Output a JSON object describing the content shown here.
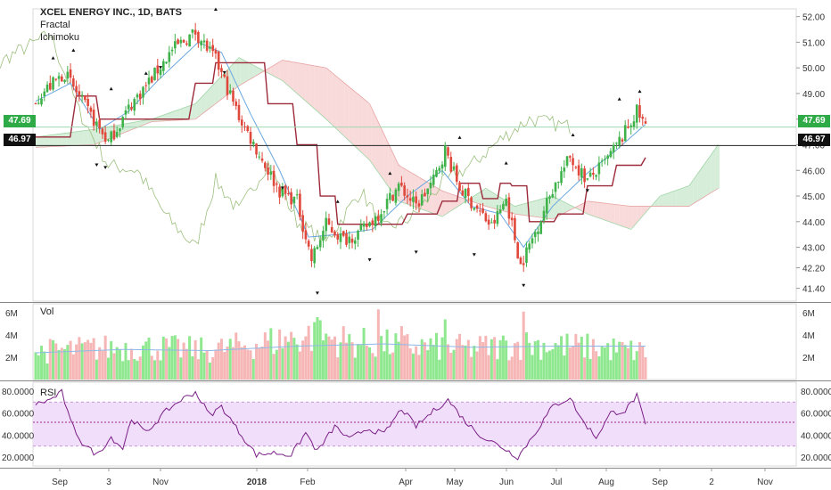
{
  "header": {
    "title": "XCEL ENERGY INC., 1D, BATS",
    "indicators": [
      "Fractal",
      "Ichimoku"
    ]
  },
  "price_labels": {
    "last_price": "47.69",
    "last_price_color": "#2eaa46",
    "reference_price": "46.97",
    "reference_price_color": "#111111"
  },
  "panes": {
    "volume_label": "Vol",
    "rsi_label": "RSI"
  },
  "colors": {
    "up": "#3fb24a",
    "down": "#e0483c",
    "vol_up": "#8fe88f",
    "vol_down": "#f7b6b6",
    "kijun": "#9c2a3a",
    "tenkan": "#6aa7e0",
    "chikou": "#9cbf7e",
    "cloud_bull": "#cfead2",
    "cloud_bear": "#f8d4d4",
    "rsi_line": "#7a1f86",
    "rsi_band": "#f1defa"
  },
  "chart_data": [
    {
      "type": "candlestick",
      "title": "XCEL ENERGY INC., 1D, BATS",
      "ylim": [
        40.9,
        52.3
      ],
      "y_ticks": [
        "52.00",
        "51.00",
        "50.00",
        "49.00",
        "48.00",
        "47.00",
        "46.00",
        "45.00",
        "44.00",
        "43.00",
        "42.20",
        "41.40"
      ],
      "x_ticks": [
        "Sep",
        "3",
        "Nov",
        "2018",
        "Feb",
        "Apr",
        "May",
        "Jun",
        "Jul",
        "Aug",
        "Sep",
        "2",
        "Nov"
      ],
      "last_price": 47.69,
      "reference_line": 46.97,
      "close_anchors": [
        {
          "bar": 0,
          "close": 48.8
        },
        {
          "bar": 10,
          "close": 49.8
        },
        {
          "bar": 18,
          "close": 48.3
        },
        {
          "bar": 25,
          "close": 47.1
        },
        {
          "bar": 33,
          "close": 48.6
        },
        {
          "bar": 40,
          "close": 49.6
        },
        {
          "bar": 47,
          "close": 50.7
        },
        {
          "bar": 55,
          "close": 51.4
        },
        {
          "bar": 62,
          "close": 50.3
        },
        {
          "bar": 70,
          "close": 48.1
        },
        {
          "bar": 78,
          "close": 46.4
        },
        {
          "bar": 84,
          "close": 45.2
        },
        {
          "bar": 90,
          "close": 44.8
        },
        {
          "bar": 95,
          "close": 42.5
        },
        {
          "bar": 100,
          "close": 43.9
        },
        {
          "bar": 106,
          "close": 43.3
        },
        {
          "bar": 112,
          "close": 43.6
        },
        {
          "bar": 118,
          "close": 44.3
        },
        {
          "bar": 125,
          "close": 45.4
        },
        {
          "bar": 131,
          "close": 44.6
        },
        {
          "bar": 137,
          "close": 45.6
        },
        {
          "bar": 141,
          "close": 46.8
        },
        {
          "bar": 146,
          "close": 45.3
        },
        {
          "bar": 152,
          "close": 44.5
        },
        {
          "bar": 157,
          "close": 43.8
        },
        {
          "bar": 162,
          "close": 44.9
        },
        {
          "bar": 167,
          "close": 42.3
        },
        {
          "bar": 172,
          "close": 43.6
        },
        {
          "bar": 178,
          "close": 45.3
        },
        {
          "bar": 184,
          "close": 46.5
        },
        {
          "bar": 190,
          "close": 45.6
        },
        {
          "bar": 196,
          "close": 46.3
        },
        {
          "bar": 202,
          "close": 47.3
        },
        {
          "bar": 207,
          "close": 48.3
        },
        {
          "bar": 210,
          "close": 47.7
        }
      ],
      "kijun": [
        {
          "bar": 0,
          "value": 47.3
        },
        {
          "bar": 14,
          "value": 48.9
        },
        {
          "bar": 22,
          "value": 48.0
        },
        {
          "bar": 40,
          "value": 48.0
        },
        {
          "bar": 55,
          "value": 49.4
        },
        {
          "bar": 62,
          "value": 50.2
        },
        {
          "bar": 72,
          "value": 50.2
        },
        {
          "bar": 80,
          "value": 48.6
        },
        {
          "bar": 90,
          "value": 47.0
        },
        {
          "bar": 98,
          "value": 45.0
        },
        {
          "bar": 104,
          "value": 43.9
        },
        {
          "bar": 116,
          "value": 43.9
        },
        {
          "bar": 128,
          "value": 44.3
        },
        {
          "bar": 140,
          "value": 44.8
        },
        {
          "bar": 146,
          "value": 45.5
        },
        {
          "bar": 154,
          "value": 44.9
        },
        {
          "bar": 160,
          "value": 45.5
        },
        {
          "bar": 164,
          "value": 45.4
        },
        {
          "bar": 170,
          "value": 44.0
        },
        {
          "bar": 180,
          "value": 44.3
        },
        {
          "bar": 190,
          "value": 45.4
        },
        {
          "bar": 200,
          "value": 46.2
        },
        {
          "bar": 210,
          "value": 46.5
        }
      ],
      "tenkan": [
        {
          "bar": 0,
          "value": 48.7
        },
        {
          "bar": 12,
          "value": 49.4
        },
        {
          "bar": 22,
          "value": 47.6
        },
        {
          "bar": 32,
          "value": 48.3
        },
        {
          "bar": 42,
          "value": 49.5
        },
        {
          "bar": 56,
          "value": 51.0
        },
        {
          "bar": 64,
          "value": 50.6
        },
        {
          "bar": 74,
          "value": 48.2
        },
        {
          "bar": 84,
          "value": 46.0
        },
        {
          "bar": 94,
          "value": 43.4
        },
        {
          "bar": 104,
          "value": 43.5
        },
        {
          "bar": 116,
          "value": 43.7
        },
        {
          "bar": 128,
          "value": 45.0
        },
        {
          "bar": 140,
          "value": 46.0
        },
        {
          "bar": 150,
          "value": 44.6
        },
        {
          "bar": 160,
          "value": 44.3
        },
        {
          "bar": 168,
          "value": 43.0
        },
        {
          "bar": 178,
          "value": 44.6
        },
        {
          "bar": 190,
          "value": 45.9
        },
        {
          "bar": 200,
          "value": 46.8
        },
        {
          "bar": 210,
          "value": 47.8
        }
      ],
      "chikou": [
        {
          "bar": -26,
          "value": 48.2
        },
        {
          "bar": -10,
          "value": 50.4
        },
        {
          "bar": 5,
          "value": 51.3
        },
        {
          "bar": 15,
          "value": 48.3
        },
        {
          "bar": 25,
          "value": 46.2
        },
        {
          "bar": 35,
          "value": 46.0
        },
        {
          "bar": 45,
          "value": 44.2
        },
        {
          "bar": 55,
          "value": 43.0
        },
        {
          "bar": 62,
          "value": 45.6
        },
        {
          "bar": 70,
          "value": 44.4
        },
        {
          "bar": 80,
          "value": 46.3
        },
        {
          "bar": 90,
          "value": 44.0
        },
        {
          "bar": 100,
          "value": 43.2
        },
        {
          "bar": 112,
          "value": 45.2
        },
        {
          "bar": 120,
          "value": 43.7
        },
        {
          "bar": 130,
          "value": 44.2
        },
        {
          "bar": 140,
          "value": 45.5
        },
        {
          "bar": 150,
          "value": 46.2
        },
        {
          "bar": 160,
          "value": 47.2
        },
        {
          "bar": 170,
          "value": 48.0
        },
        {
          "bar": 184,
          "value": 47.7
        }
      ],
      "cloud": [
        {
          "bar": 0,
          "a": 47.3,
          "b": 46.9
        },
        {
          "bar": 20,
          "a": 47.6,
          "b": 47.0
        },
        {
          "bar": 40,
          "a": 48.0,
          "b": 47.9
        },
        {
          "bar": 55,
          "a": 48.6,
          "b": 48.0
        },
        {
          "bar": 70,
          "a": 50.4,
          "b": 49.3
        },
        {
          "bar": 85,
          "a": 49.5,
          "b": 50.3
        },
        {
          "bar": 100,
          "a": 48.0,
          "b": 50.0
        },
        {
          "bar": 115,
          "a": 46.4,
          "b": 48.6
        },
        {
          "bar": 125,
          "a": 44.8,
          "b": 46.2
        },
        {
          "bar": 140,
          "a": 44.2,
          "b": 45.2
        },
        {
          "bar": 155,
          "a": 45.3,
          "b": 44.6
        },
        {
          "bar": 165,
          "a": 44.6,
          "b": 44.3
        },
        {
          "bar": 178,
          "a": 45.0,
          "b": 44.1
        },
        {
          "bar": 190,
          "a": 44.3,
          "b": 44.8
        },
        {
          "bar": 205,
          "a": 43.7,
          "b": 44.6
        },
        {
          "bar": 215,
          "a": 45.0,
          "b": 44.6
        },
        {
          "bar": 225,
          "a": 45.4,
          "b": 44.6
        },
        {
          "bar": 235,
          "a": 47.0,
          "b": 45.3
        }
      ],
      "fractals_up": [
        {
          "bar": 6,
          "value": 50.4
        },
        {
          "bar": 13,
          "value": 50.7
        },
        {
          "bar": 26,
          "value": 49.2
        },
        {
          "bar": 38,
          "value": 49.8
        },
        {
          "bar": 55,
          "value": 52.8
        },
        {
          "bar": 62,
          "value": 52.3
        },
        {
          "bar": 104,
          "value": 44.8
        },
        {
          "bar": 122,
          "value": 45.9
        },
        {
          "bar": 146,
          "value": 47.3
        },
        {
          "bar": 162,
          "value": 46.3
        },
        {
          "bar": 185,
          "value": 47.4
        },
        {
          "bar": 201,
          "value": 48.8
        },
        {
          "bar": 208,
          "value": 49.1
        }
      ],
      "fractals_down": [
        {
          "bar": 21,
          "value": 46.2
        },
        {
          "bar": 24,
          "value": 46.1
        },
        {
          "bar": 43,
          "value": 50.0
        },
        {
          "bar": 65,
          "value": 49.8
        },
        {
          "bar": 85,
          "value": 45.3
        },
        {
          "bar": 97,
          "value": 41.2
        },
        {
          "bar": 115,
          "value": 42.5
        },
        {
          "bar": 131,
          "value": 42.8
        },
        {
          "bar": 151,
          "value": 42.7
        },
        {
          "bar": 168,
          "value": 41.5
        },
        {
          "bar": 190,
          "value": 45.2
        }
      ]
    },
    {
      "type": "bar",
      "title": "Vol",
      "ylim": [
        0,
        6800000
      ],
      "y_ticks": [
        "6M",
        "4M",
        "2M"
      ],
      "volume_anchors": [
        {
          "bar": 0,
          "value": 2500000
        },
        {
          "bar": 20,
          "value": 2800000
        },
        {
          "bar": 40,
          "value": 2900000
        },
        {
          "bar": 60,
          "value": 2600000
        },
        {
          "bar": 78,
          "value": 3300000
        },
        {
          "bar": 96,
          "value": 4000000
        },
        {
          "bar": 110,
          "value": 3300000
        },
        {
          "bar": 130,
          "value": 3000000
        },
        {
          "bar": 150,
          "value": 2800000
        },
        {
          "bar": 170,
          "value": 3200000
        },
        {
          "bar": 190,
          "value": 2900000
        },
        {
          "bar": 210,
          "value": 2500000
        }
      ],
      "volume_spikes": [
        {
          "bar": 97,
          "value": 5600000
        },
        {
          "bar": 118,
          "value": 6300000
        },
        {
          "bar": 141,
          "value": 5400000
        },
        {
          "bar": 168,
          "value": 6100000
        },
        {
          "bar": 126,
          "value": 4800000
        }
      ],
      "volume_ma": [
        {
          "bar": 0,
          "value": 2400000
        },
        {
          "bar": 30,
          "value": 2700000
        },
        {
          "bar": 60,
          "value": 2600000
        },
        {
          "bar": 90,
          "value": 3000000
        },
        {
          "bar": 120,
          "value": 3200000
        },
        {
          "bar": 150,
          "value": 2900000
        },
        {
          "bar": 180,
          "value": 3000000
        },
        {
          "bar": 210,
          "value": 3000000
        }
      ]
    },
    {
      "type": "line",
      "title": "RSI",
      "ylim": [
        12,
        88
      ],
      "y_ticks": [
        "80.0000",
        "60.0000",
        "40.0000",
        "20.0000"
      ],
      "band": [
        30,
        70
      ],
      "midline": 51.6,
      "rsi_anchors": [
        {
          "bar": 0,
          "value": 68
        },
        {
          "bar": 5,
          "value": 72
        },
        {
          "bar": 9,
          "value": 79
        },
        {
          "bar": 12,
          "value": 52
        },
        {
          "bar": 16,
          "value": 33
        },
        {
          "bar": 21,
          "value": 22
        },
        {
          "bar": 26,
          "value": 38
        },
        {
          "bar": 30,
          "value": 28
        },
        {
          "bar": 33,
          "value": 55
        },
        {
          "bar": 38,
          "value": 42
        },
        {
          "bar": 45,
          "value": 62
        },
        {
          "bar": 50,
          "value": 72
        },
        {
          "bar": 55,
          "value": 79
        },
        {
          "bar": 60,
          "value": 58
        },
        {
          "bar": 64,
          "value": 66
        },
        {
          "bar": 70,
          "value": 43
        },
        {
          "bar": 76,
          "value": 22
        },
        {
          "bar": 82,
          "value": 24
        },
        {
          "bar": 88,
          "value": 22
        },
        {
          "bar": 93,
          "value": 42
        },
        {
          "bar": 97,
          "value": 25
        },
        {
          "bar": 103,
          "value": 48
        },
        {
          "bar": 108,
          "value": 36
        },
        {
          "bar": 114,
          "value": 46
        },
        {
          "bar": 120,
          "value": 41
        },
        {
          "bar": 126,
          "value": 64
        },
        {
          "bar": 131,
          "value": 48
        },
        {
          "bar": 137,
          "value": 62
        },
        {
          "bar": 142,
          "value": 72
        },
        {
          "bar": 148,
          "value": 52
        },
        {
          "bar": 154,
          "value": 38
        },
        {
          "bar": 160,
          "value": 30
        },
        {
          "bar": 166,
          "value": 20
        },
        {
          "bar": 172,
          "value": 42
        },
        {
          "bar": 178,
          "value": 66
        },
        {
          "bar": 184,
          "value": 74
        },
        {
          "bar": 188,
          "value": 54
        },
        {
          "bar": 193,
          "value": 38
        },
        {
          "bar": 198,
          "value": 60
        },
        {
          "bar": 203,
          "value": 62
        },
        {
          "bar": 207,
          "value": 76
        },
        {
          "bar": 210,
          "value": 48
        }
      ]
    }
  ]
}
